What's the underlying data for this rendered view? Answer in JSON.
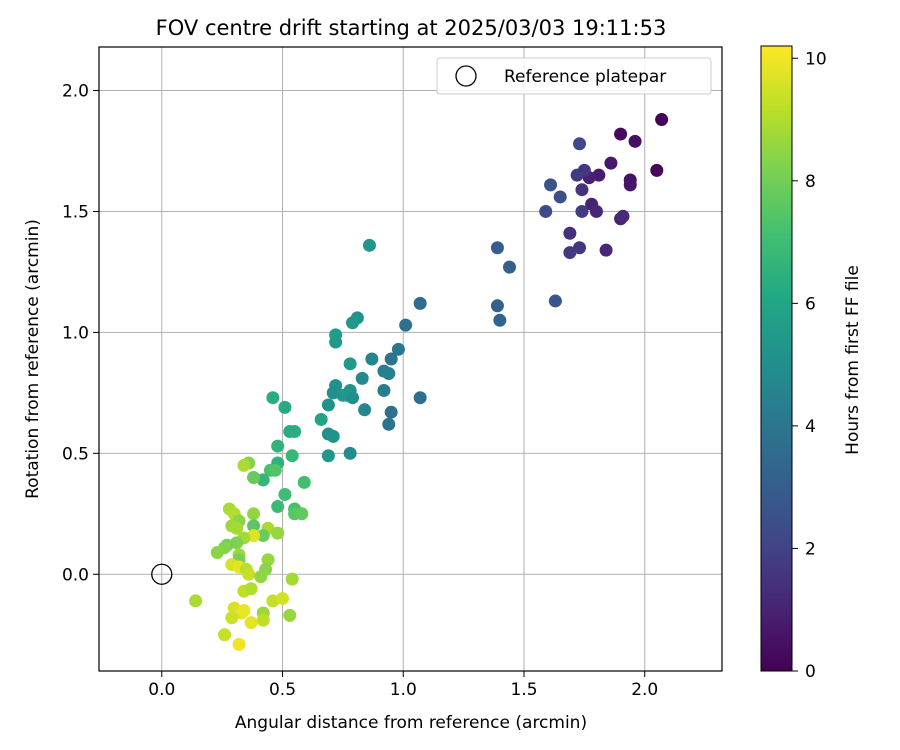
{
  "chart_data": {
    "type": "scatter",
    "title": "FOV centre drift starting at 2025/03/03 19:11:53",
    "xlabel": "Angular distance from reference (arcmin)",
    "ylabel": "Rotation from reference (arcmin)",
    "xlim": [
      -0.26,
      2.32
    ],
    "ylim": [
      -0.4,
      2.18
    ],
    "xticks": [
      0.0,
      0.5,
      1.0,
      1.5,
      2.0
    ],
    "xtick_labels": [
      "0.0",
      "0.5",
      "1.0",
      "1.5",
      "2.0"
    ],
    "yticks": [
      0.0,
      0.5,
      1.0,
      1.5,
      2.0
    ],
    "ytick_labels": [
      "0.0",
      "0.5",
      "1.0",
      "1.5",
      "2.0"
    ],
    "grid": true,
    "legend": {
      "placement": "upper-right",
      "entries": [
        {
          "label": "Reference platepar",
          "marker": "open-circle",
          "x": 0.0,
          "y": 0.0
        }
      ]
    },
    "colorbar": {
      "label": "Hours from first FF file",
      "range": [
        0,
        10.2
      ],
      "ticks": [
        0,
        2,
        4,
        6,
        8,
        10
      ],
      "tick_labels": [
        "0",
        "2",
        "4",
        "6",
        "8",
        "10"
      ],
      "colormap": "viridis"
    },
    "points": [
      {
        "x": 2.07,
        "y": 1.88,
        "c": 0.1
      },
      {
        "x": 1.9,
        "y": 1.82,
        "c": 0.3
      },
      {
        "x": 1.96,
        "y": 1.79,
        "c": 0.4
      },
      {
        "x": 2.05,
        "y": 1.67,
        "c": 0.2
      },
      {
        "x": 1.94,
        "y": 1.63,
        "c": 0.5
      },
      {
        "x": 1.94,
        "y": 1.61,
        "c": 0.6
      },
      {
        "x": 1.86,
        "y": 1.7,
        "c": 0.7
      },
      {
        "x": 1.81,
        "y": 1.65,
        "c": 0.8
      },
      {
        "x": 1.77,
        "y": 1.64,
        "c": 0.9
      },
      {
        "x": 1.78,
        "y": 1.53,
        "c": 1.0
      },
      {
        "x": 1.8,
        "y": 1.5,
        "c": 1.1
      },
      {
        "x": 1.9,
        "y": 1.47,
        "c": 1.0
      },
      {
        "x": 1.91,
        "y": 1.48,
        "c": 1.2
      },
      {
        "x": 1.84,
        "y": 1.34,
        "c": 1.1
      },
      {
        "x": 1.73,
        "y": 1.78,
        "c": 2.2
      },
      {
        "x": 1.75,
        "y": 1.67,
        "c": 1.6
      },
      {
        "x": 1.72,
        "y": 1.65,
        "c": 1.7
      },
      {
        "x": 1.74,
        "y": 1.59,
        "c": 1.5
      },
      {
        "x": 1.74,
        "y": 1.5,
        "c": 1.8
      },
      {
        "x": 1.69,
        "y": 1.41,
        "c": 1.4
      },
      {
        "x": 1.73,
        "y": 1.35,
        "c": 1.6
      },
      {
        "x": 1.69,
        "y": 1.33,
        "c": 1.7
      },
      {
        "x": 1.61,
        "y": 1.61,
        "c": 2.6
      },
      {
        "x": 1.65,
        "y": 1.56,
        "c": 2.4
      },
      {
        "x": 1.59,
        "y": 1.5,
        "c": 2.3
      },
      {
        "x": 1.63,
        "y": 1.13,
        "c": 2.7
      },
      {
        "x": 1.39,
        "y": 1.35,
        "c": 3.0
      },
      {
        "x": 1.44,
        "y": 1.27,
        "c": 3.1
      },
      {
        "x": 1.39,
        "y": 1.11,
        "c": 3.2
      },
      {
        "x": 1.4,
        "y": 1.05,
        "c": 3.3
      },
      {
        "x": 1.07,
        "y": 1.12,
        "c": 3.6
      },
      {
        "x": 1.01,
        "y": 1.03,
        "c": 3.8
      },
      {
        "x": 1.07,
        "y": 0.73,
        "c": 3.7
      },
      {
        "x": 0.98,
        "y": 0.93,
        "c": 4.1
      },
      {
        "x": 0.95,
        "y": 0.89,
        "c": 3.9
      },
      {
        "x": 0.95,
        "y": 0.67,
        "c": 3.8
      },
      {
        "x": 0.94,
        "y": 0.62,
        "c": 3.9
      },
      {
        "x": 0.92,
        "y": 0.84,
        "c": 4.3
      },
      {
        "x": 0.94,
        "y": 0.83,
        "c": 4.4
      },
      {
        "x": 0.92,
        "y": 0.76,
        "c": 4.2
      },
      {
        "x": 0.87,
        "y": 0.89,
        "c": 4.6
      },
      {
        "x": 0.83,
        "y": 0.81,
        "c": 4.8
      },
      {
        "x": 0.84,
        "y": 0.68,
        "c": 4.7
      },
      {
        "x": 0.86,
        "y": 1.36,
        "c": 5.3
      },
      {
        "x": 0.81,
        "y": 1.06,
        "c": 5.2
      },
      {
        "x": 0.79,
        "y": 1.04,
        "c": 5.4
      },
      {
        "x": 0.72,
        "y": 0.99,
        "c": 5.6
      },
      {
        "x": 0.72,
        "y": 0.96,
        "c": 5.5
      },
      {
        "x": 0.78,
        "y": 0.87,
        "c": 5.5
      },
      {
        "x": 0.72,
        "y": 0.78,
        "c": 5.1
      },
      {
        "x": 0.71,
        "y": 0.75,
        "c": 5.0
      },
      {
        "x": 0.78,
        "y": 0.76,
        "c": 5.2
      },
      {
        "x": 0.75,
        "y": 0.74,
        "c": 5.3
      },
      {
        "x": 0.77,
        "y": 0.74,
        "c": 5.4
      },
      {
        "x": 0.79,
        "y": 0.73,
        "c": 5.0
      },
      {
        "x": 0.69,
        "y": 0.7,
        "c": 5.1
      },
      {
        "x": 0.66,
        "y": 0.64,
        "c": 5.9
      },
      {
        "x": 0.69,
        "y": 0.58,
        "c": 5.0
      },
      {
        "x": 0.71,
        "y": 0.57,
        "c": 5.2
      },
      {
        "x": 0.69,
        "y": 0.49,
        "c": 5.3
      },
      {
        "x": 0.78,
        "y": 0.5,
        "c": 4.9
      },
      {
        "x": 0.46,
        "y": 0.73,
        "c": 6.3
      },
      {
        "x": 0.51,
        "y": 0.69,
        "c": 6.2
      },
      {
        "x": 0.53,
        "y": 0.59,
        "c": 6.3
      },
      {
        "x": 0.55,
        "y": 0.59,
        "c": 6.4
      },
      {
        "x": 0.48,
        "y": 0.53,
        "c": 6.6
      },
      {
        "x": 0.54,
        "y": 0.49,
        "c": 6.8
      },
      {
        "x": 0.48,
        "y": 0.46,
        "c": 6.5
      },
      {
        "x": 0.45,
        "y": 0.43,
        "c": 7.2
      },
      {
        "x": 0.47,
        "y": 0.43,
        "c": 7.4
      },
      {
        "x": 0.42,
        "y": 0.39,
        "c": 6.7
      },
      {
        "x": 0.38,
        "y": 0.4,
        "c": 7.8
      },
      {
        "x": 0.59,
        "y": 0.38,
        "c": 7.1
      },
      {
        "x": 0.51,
        "y": 0.33,
        "c": 7.0
      },
      {
        "x": 0.48,
        "y": 0.28,
        "c": 6.9
      },
      {
        "x": 0.55,
        "y": 0.27,
        "c": 7.2
      },
      {
        "x": 0.55,
        "y": 0.25,
        "c": 7.5
      },
      {
        "x": 0.58,
        "y": 0.25,
        "c": 7.7
      },
      {
        "x": 0.36,
        "y": 0.46,
        "c": 8.3
      },
      {
        "x": 0.34,
        "y": 0.45,
        "c": 8.9
      },
      {
        "x": 0.38,
        "y": 0.25,
        "c": 8.5
      },
      {
        "x": 0.28,
        "y": 0.27,
        "c": 8.9
      },
      {
        "x": 0.3,
        "y": 0.25,
        "c": 9.0
      },
      {
        "x": 0.32,
        "y": 0.22,
        "c": 8.4
      },
      {
        "x": 0.29,
        "y": 0.2,
        "c": 8.7
      },
      {
        "x": 0.31,
        "y": 0.19,
        "c": 8.8
      },
      {
        "x": 0.38,
        "y": 0.2,
        "c": 7.6
      },
      {
        "x": 0.44,
        "y": 0.19,
        "c": 8.9
      },
      {
        "x": 0.48,
        "y": 0.17,
        "c": 8.6
      },
      {
        "x": 0.42,
        "y": 0.16,
        "c": 7.9
      },
      {
        "x": 0.38,
        "y": 0.16,
        "c": 9.7
      },
      {
        "x": 0.34,
        "y": 0.15,
        "c": 8.8
      },
      {
        "x": 0.31,
        "y": 0.13,
        "c": 8.2
      },
      {
        "x": 0.27,
        "y": 0.12,
        "c": 8.0
      },
      {
        "x": 0.26,
        "y": 0.11,
        "c": 8.3
      },
      {
        "x": 0.23,
        "y": 0.09,
        "c": 8.4
      },
      {
        "x": 0.32,
        "y": 0.08,
        "c": 8.7
      },
      {
        "x": 0.32,
        "y": 0.06,
        "c": 8.1
      },
      {
        "x": 0.44,
        "y": 0.06,
        "c": 8.6
      },
      {
        "x": 0.29,
        "y": 0.04,
        "c": 9.6
      },
      {
        "x": 0.32,
        "y": 0.03,
        "c": 9.8
      },
      {
        "x": 0.35,
        "y": 0.02,
        "c": 9.1
      },
      {
        "x": 0.43,
        "y": 0.02,
        "c": 8.4
      },
      {
        "x": 0.36,
        "y": 0.0,
        "c": 9.3
      },
      {
        "x": 0.41,
        "y": -0.01,
        "c": 8.5
      },
      {
        "x": 0.54,
        "y": -0.02,
        "c": 8.8
      },
      {
        "x": 0.34,
        "y": -0.07,
        "c": 9.2
      },
      {
        "x": 0.37,
        "y": -0.06,
        "c": 9.0
      },
      {
        "x": 0.14,
        "y": -0.11,
        "c": 8.9
      },
      {
        "x": 0.46,
        "y": -0.11,
        "c": 9.3
      },
      {
        "x": 0.5,
        "y": -0.1,
        "c": 9.5
      },
      {
        "x": 0.3,
        "y": -0.14,
        "c": 9.6
      },
      {
        "x": 0.33,
        "y": -0.16,
        "c": 9.7
      },
      {
        "x": 0.34,
        "y": -0.15,
        "c": 9.9
      },
      {
        "x": 0.42,
        "y": -0.16,
        "c": 8.7
      },
      {
        "x": 0.29,
        "y": -0.18,
        "c": 9.4
      },
      {
        "x": 0.42,
        "y": -0.19,
        "c": 9.2
      },
      {
        "x": 0.53,
        "y": -0.17,
        "c": 8.6
      },
      {
        "x": 0.37,
        "y": -0.2,
        "c": 9.8
      },
      {
        "x": 0.26,
        "y": -0.25,
        "c": 9.3
      },
      {
        "x": 0.32,
        "y": -0.29,
        "c": 10.0
      }
    ]
  }
}
